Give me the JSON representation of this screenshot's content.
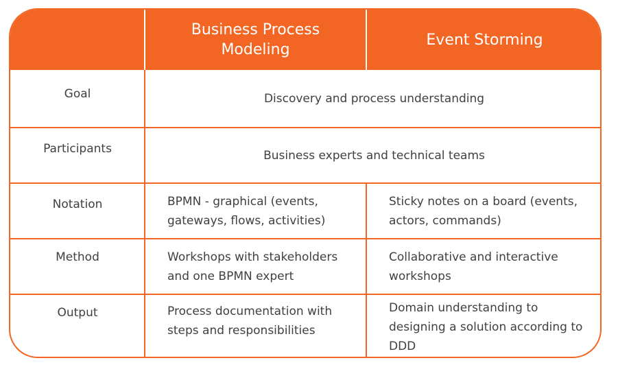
{
  "colors": {
    "accent": "#f26522",
    "text": "#404040",
    "header_text": "#ffffff"
  },
  "header": {
    "col1": "",
    "col2": "Business Process Modeling",
    "col3": "Event Storming"
  },
  "rows": [
    {
      "label": "Goal",
      "shared": "Discovery and process understanding"
    },
    {
      "label": "Participants",
      "shared": "Business experts and technical teams"
    },
    {
      "label": "Notation",
      "bpm": "BPMN - graphical (events, gateways, flows, activities)",
      "es": "Sticky notes on a board (events, actors, commands)"
    },
    {
      "label": "Method",
      "bpm": "Workshops with stakeholders and one BPMN expert",
      "es": "Collaborative and interactive workshops"
    },
    {
      "label": "Output",
      "bpm": "Process documentation with steps and responsibilities",
      "es": "Domain understanding to designing a solution according to DDD"
    }
  ]
}
